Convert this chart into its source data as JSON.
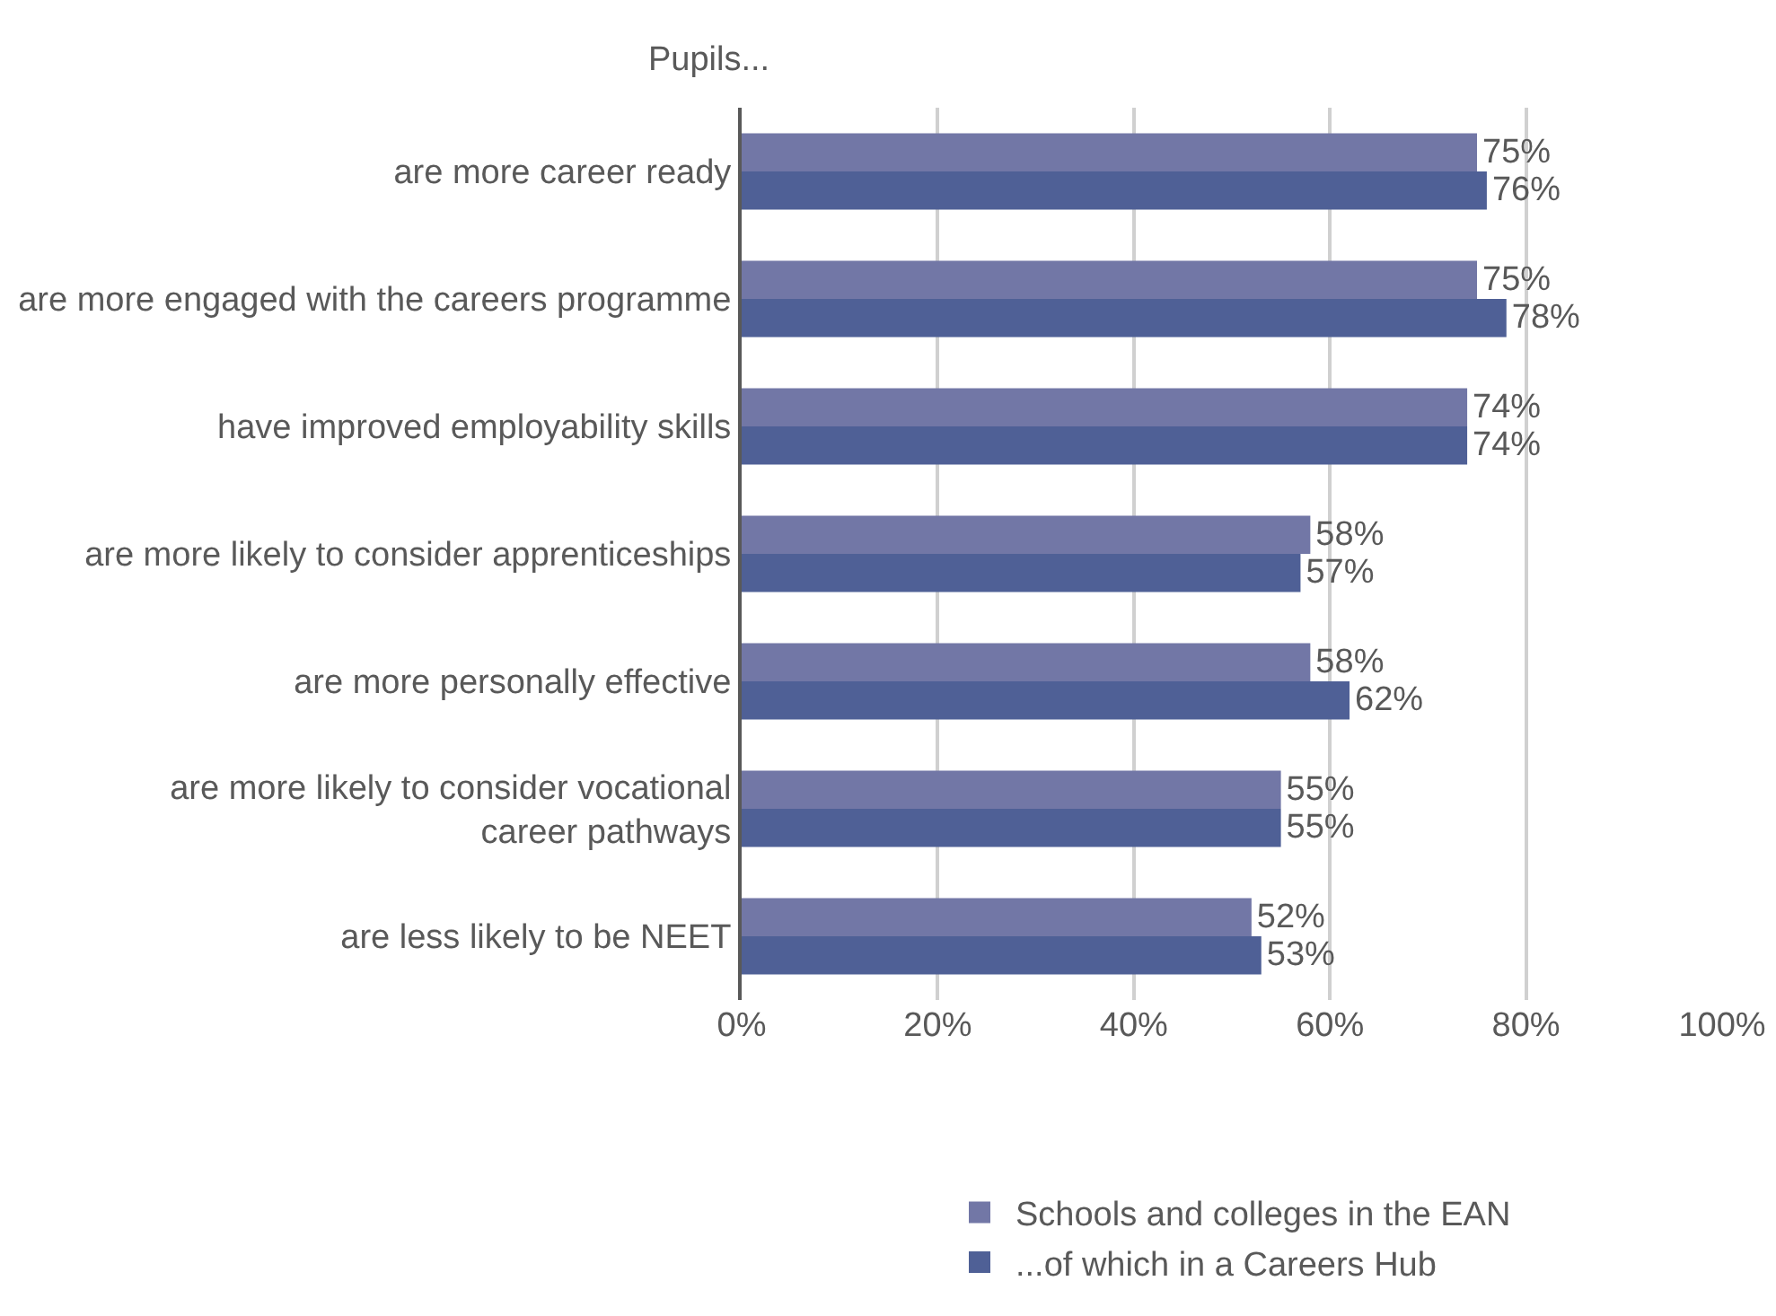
{
  "chart_data": {
    "type": "bar",
    "orientation": "horizontal",
    "title": "Pupils...",
    "categories": [
      "are more career ready",
      "are more engaged with the careers programme",
      "have improved employability skills",
      "are more likely to consider apprenticeships",
      "are more personally effective",
      "are more likely to consider vocational career pathways",
      "are less likely to be NEET"
    ],
    "series": [
      {
        "name": "Schools and colleges in the EAN",
        "color": "#7277a6",
        "values": [
          75,
          75,
          74,
          58,
          58,
          55,
          52
        ],
        "value_labels": [
          "75%",
          "75%",
          "74%",
          "58%",
          "58%",
          "55%",
          "52%"
        ]
      },
      {
        "name": "...of which in a Careers Hub",
        "color": "#4f6096",
        "values": [
          76,
          78,
          74,
          57,
          62,
          55,
          53
        ],
        "value_labels": [
          "76%",
          "78%",
          "74%",
          "57%",
          "62%",
          "55%",
          "53%"
        ]
      }
    ],
    "xlim": [
      0,
      100
    ],
    "xticks": [
      {
        "value": 0,
        "label": "0%"
      },
      {
        "value": 20,
        "label": "20%"
      },
      {
        "value": 40,
        "label": "40%"
      },
      {
        "value": 60,
        "label": "60%"
      },
      {
        "value": 80,
        "label": "80%"
      },
      {
        "value": 100,
        "label": "100%"
      }
    ],
    "grid": "x",
    "legend": "bottom"
  }
}
